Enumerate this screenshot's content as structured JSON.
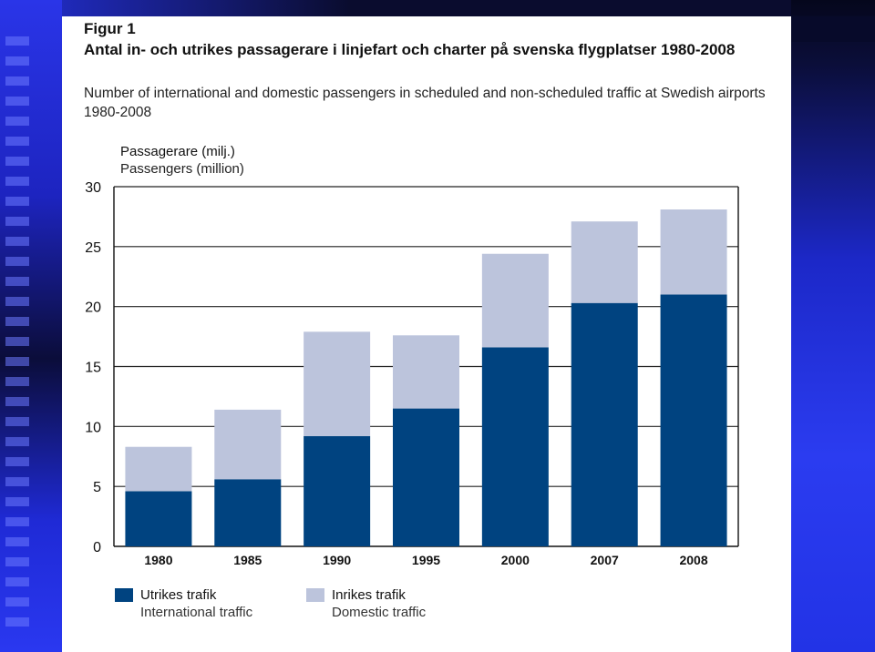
{
  "figure": {
    "label": "Figur 1",
    "title_sv": "Antal in- och utrikes passagerare i linjefart och charter på svenska flygplatser 1980-2008",
    "title_en": "Number of international and domestic passengers in scheduled and non-scheduled traffic at Swedish airports 1980-2008"
  },
  "chart_data": {
    "type": "bar",
    "stacked": true,
    "ylabel_sv": "Passagerare (milj.)",
    "ylabel_en": "Passengers (million)",
    "categories": [
      "1980",
      "1985",
      "1990",
      "1995",
      "2000",
      "2007",
      "2008"
    ],
    "ylim": [
      0,
      30
    ],
    "yticks": [
      0,
      5,
      10,
      15,
      20,
      25,
      30
    ],
    "grid": true,
    "series": [
      {
        "name_sv": "Utrikes trafik",
        "name_en": "International traffic",
        "color": "#004380",
        "values": [
          4.6,
          5.6,
          9.2,
          11.5,
          16.6,
          20.3,
          21.0
        ]
      },
      {
        "name_sv": "Inrikes trafik",
        "name_en": "Domestic traffic",
        "color": "#bcc4dc",
        "values": [
          3.7,
          5.8,
          8.7,
          6.1,
          7.8,
          6.8,
          7.1
        ]
      }
    ],
    "legend_position": "bottom"
  },
  "colors": {
    "gridline": "#222222",
    "axis": "#111111"
  }
}
